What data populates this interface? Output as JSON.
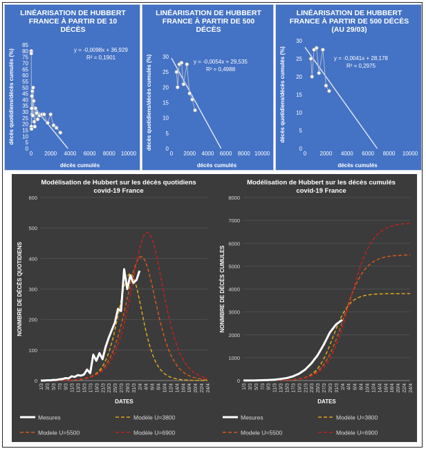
{
  "chart_data": [
    {
      "type": "scatter",
      "title": "LINÉARISATION DE HUBBERT FRANCE À PARTIR DE 10 DÉCÈS",
      "xlabel": "décès cumulés",
      "ylabel": "décès quotidiens/décès cumulés (%)",
      "xlim": [
        0,
        10000
      ],
      "ylim": [
        0,
        85
      ],
      "xticks": [
        "0",
        "2000",
        "4000",
        "6000",
        "8000",
        "10000"
      ],
      "yticks": [
        "0",
        "5",
        "10",
        "15",
        "20",
        "25",
        "30",
        "35",
        "40",
        "45",
        "50",
        "55",
        "60",
        "65",
        "70",
        "75",
        "80",
        "85"
      ],
      "points": [
        {
          "x": 12,
          "y": 80
        },
        {
          "x": 18,
          "y": 78
        },
        {
          "x": 25,
          "y": 18
        },
        {
          "x": 40,
          "y": 16
        },
        {
          "x": 60,
          "y": 33
        },
        {
          "x": 80,
          "y": 43
        },
        {
          "x": 100,
          "y": 28
        },
        {
          "x": 130,
          "y": 47
        },
        {
          "x": 170,
          "y": 27
        },
        {
          "x": 210,
          "y": 50
        },
        {
          "x": 260,
          "y": 39
        },
        {
          "x": 320,
          "y": 22
        },
        {
          "x": 380,
          "y": 18
        },
        {
          "x": 450,
          "y": 33
        },
        {
          "x": 560,
          "y": 29
        },
        {
          "x": 670,
          "y": 24
        },
        {
          "x": 860,
          "y": 27
        },
        {
          "x": 1100,
          "y": 28
        },
        {
          "x": 1330,
          "y": 28
        },
        {
          "x": 1700,
          "y": 21
        },
        {
          "x": 2000,
          "y": 28
        },
        {
          "x": 2300,
          "y": 19
        },
        {
          "x": 2600,
          "y": 17
        },
        {
          "x": 3000,
          "y": 13
        }
      ],
      "trend": {
        "x": [
          0,
          3773
        ],
        "y": [
          36.929,
          0
        ]
      },
      "equation": "y = -0,0098x + 36,929",
      "r2": "R² = 0,1901"
    },
    {
      "type": "scatter",
      "title": "LINÉARISATION DE HUBBERT FRANCE À PARTIR DE 500 DÉCÈS",
      "xlabel": "décès cumulés",
      "ylabel": "décès quotidiens/décès cumulés (%)",
      "xlim": [
        0,
        10000
      ],
      "ylim": [
        0,
        30
      ],
      "xticks": [
        "0",
        "2000",
        "4000",
        "6000",
        "8000",
        "10000"
      ],
      "yticks": [
        "0",
        "5",
        "10",
        "15",
        "20",
        "25",
        "30"
      ],
      "points": [
        {
          "x": 560,
          "y": 25
        },
        {
          "x": 670,
          "y": 20
        },
        {
          "x": 860,
          "y": 27.5
        },
        {
          "x": 1100,
          "y": 28
        },
        {
          "x": 1330,
          "y": 21
        },
        {
          "x": 1700,
          "y": 27.5
        },
        {
          "x": 2000,
          "y": 18
        },
        {
          "x": 2300,
          "y": 16
        },
        {
          "x": 2600,
          "y": 12.5
        }
      ],
      "trend": {
        "x": [
          0,
          5469
        ],
        "y": [
          29.535,
          0
        ]
      },
      "equation": "y = -0,0054x + 29,535",
      "r2": "R² = 0,4988"
    },
    {
      "type": "scatter",
      "title": "LINÉARISATION DE HUBBERT FRANCE À PARTIR DE 500 DÉCÈS (AU 29/03)",
      "xlabel": "décès cumulés",
      "ylabel": "décès quotidiens/décès cumulés (%)",
      "xlim": [
        0,
        10000
      ],
      "ylim": [
        0,
        30
      ],
      "xticks": [
        "0",
        "2000",
        "4000",
        "6000",
        "8000",
        "10000"
      ],
      "yticks": [
        "0",
        "5",
        "10",
        "15",
        "20",
        "25",
        "30"
      ],
      "points": [
        {
          "x": 560,
          "y": 25
        },
        {
          "x": 670,
          "y": 20
        },
        {
          "x": 860,
          "y": 27.5
        },
        {
          "x": 1100,
          "y": 28
        },
        {
          "x": 1330,
          "y": 21
        },
        {
          "x": 1700,
          "y": 27.5
        },
        {
          "x": 2000,
          "y": 17.5
        },
        {
          "x": 2300,
          "y": 16
        }
      ],
      "trend": {
        "x": [
          0,
          6873
        ],
        "y": [
          28.178,
          0
        ]
      },
      "equation": "y = -0,0041x + 28,178",
      "r2": "R² = 0,2975"
    },
    {
      "type": "line",
      "title": "Modélisation de Hubbert sur les décès quotidiens",
      "subtitle": "covid-19 France",
      "xlabel": "DATES",
      "ylabel": "NONMBRE DE DÉCÈS QUOTIDIENS",
      "ylim": [
        0,
        600
      ],
      "yticks": [
        "0",
        "100",
        "200",
        "300",
        "400",
        "500",
        "600"
      ],
      "categories": [
        "1/3",
        "3/3",
        "5/3",
        "7/3",
        "9/3",
        "11/3",
        "13/3",
        "15/3",
        "17/3",
        "19/3",
        "21/3",
        "23/3",
        "25/3",
        "27/3",
        "29/3",
        "31/3",
        "2/4",
        "4/4",
        "6/4",
        "8/4",
        "10/4",
        "12/4",
        "14/4",
        "16/4",
        "18/4",
        "20/4",
        "22/4",
        "24/4"
      ],
      "x_start": 1,
      "x_end": 55,
      "series": [
        {
          "name": "Mesures",
          "color": "#ffffff",
          "dash": "",
          "width": 3,
          "x": [
            1,
            2,
            3,
            4,
            5,
            6,
            7,
            8,
            9,
            10,
            11,
            12,
            13,
            14,
            15,
            16,
            17,
            18,
            19,
            20,
            21,
            22,
            23,
            24,
            25,
            26,
            27,
            28,
            29,
            30,
            31,
            32,
            33
          ],
          "values": [
            0,
            0,
            1,
            1,
            2,
            2,
            4,
            5,
            8,
            7,
            14,
            12,
            18,
            16,
            20,
            36,
            24,
            85,
            65,
            90,
            70,
            110,
            140,
            165,
            190,
            235,
            228,
            365,
            300,
            345,
            320,
            330,
            360
          ]
        },
        {
          "name": "Modèle U=3800",
          "color": "#e0a81e",
          "dash": "5 3",
          "width": 1.5,
          "params": {
            "U": 3800,
            "k": 0.3693,
            "t0": 30
          }
        },
        {
          "name": "Modèle U=5500",
          "color": "#d85a1a",
          "dash": "5 3",
          "width": 1.5,
          "params": {
            "U": 5500,
            "k": 0.2954,
            "t0": 33.5
          }
        },
        {
          "name": "Modèle U=6900",
          "color": "#c42020",
          "dash": "5 3",
          "width": 1.5,
          "params": {
            "U": 6900,
            "k": 0.2818,
            "t0": 35.5
          }
        }
      ]
    },
    {
      "type": "line",
      "title": "Modélisation de Hubbert sur les décès cumulés",
      "subtitle": "covid-19 France",
      "xlabel": "DATES",
      "ylabel": "NONMBRE DE DÉCÈS CUMULES",
      "ylim": [
        0,
        8000
      ],
      "yticks": [
        "0",
        "1000",
        "2000",
        "3000",
        "4000",
        "5000",
        "6000",
        "7000",
        "8000"
      ],
      "categories": [
        "1/3",
        "3/3",
        "5/3",
        "7/3",
        "9/3",
        "11/3",
        "13/3",
        "15/3",
        "17/3",
        "19/3",
        "21/3",
        "23/3",
        "25/3",
        "27/3",
        "29/3",
        "31/3",
        "2/4",
        "4/4",
        "6/4",
        "8/4",
        "10/4",
        "12/4",
        "14/4",
        "16/4",
        "18/4",
        "20/4",
        "22/4",
        "24/4"
      ],
      "x_start": 1,
      "x_end": 55,
      "series": [
        {
          "name": "Mesures",
          "color": "#ffffff",
          "dash": "",
          "width": 3,
          "x": [
            1,
            3,
            5,
            7,
            9,
            11,
            13,
            15,
            17,
            19,
            21,
            23,
            25,
            27,
            29,
            31,
            33
          ],
          "values": [
            2,
            3,
            6,
            15,
            25,
            35,
            70,
            110,
            180,
            300,
            480,
            750,
            1100,
            1560,
            2100,
            2450,
            2650
          ]
        },
        {
          "name": "Modèle U=3800",
          "color": "#e0a81e",
          "dash": "5 3",
          "width": 1.5,
          "params": {
            "U": 3800,
            "k": 0.3693,
            "t0": 30
          }
        },
        {
          "name": "Modèle U=5500",
          "color": "#d85a1a",
          "dash": "5 3",
          "width": 1.5,
          "params": {
            "U": 5500,
            "k": 0.2954,
            "t0": 33.5
          }
        },
        {
          "name": "Modèle U=6900",
          "color": "#c42020",
          "dash": "5 3",
          "width": 1.5,
          "params": {
            "U": 6900,
            "k": 0.2818,
            "t0": 35.5
          }
        }
      ]
    }
  ],
  "legend_labels": [
    "Mesures",
    "Modèle U=3800",
    "Modele U=5500",
    "Modèle U=6900"
  ],
  "colors": {
    "blue_bg": "#4472c4",
    "dark_bg": "#3b3b3b",
    "measure": "#ffffff",
    "u3800": "#e0a81e",
    "u5500": "#d85a1a",
    "u6900": "#c42020"
  }
}
